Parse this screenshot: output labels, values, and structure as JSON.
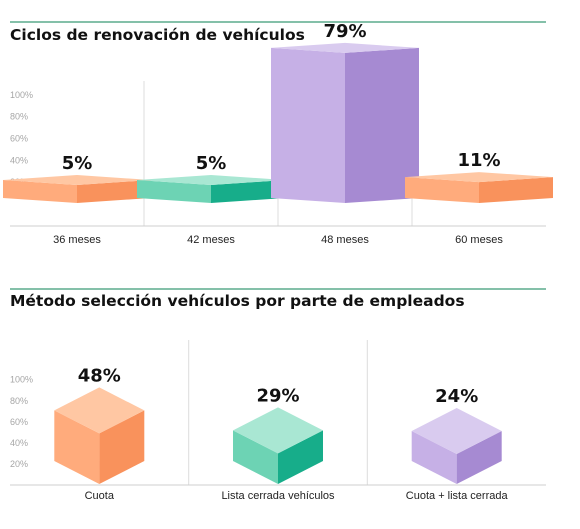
{
  "colors": {
    "header_rule": "#3a9a76",
    "orange": [
      "#ffc7a3",
      "#ffab7c",
      "#f9925c"
    ],
    "teal": [
      "#a9e7d3",
      "#6dd3b4",
      "#17ad8a"
    ],
    "purple": [
      "#d9cbef",
      "#c6b0e6",
      "#a68ad2"
    ]
  },
  "chart_data": [
    {
      "type": "bar",
      "title": "Ciclos de renovación de vehículos",
      "categories": [
        "36 meses",
        "42 meses",
        "48 meses",
        "60 meses"
      ],
      "values": [
        5,
        5,
        79,
        11
      ],
      "value_labels": [
        "5%",
        "5%",
        "79%",
        "11%"
      ],
      "bar_colors": [
        "orange",
        "teal",
        "purple",
        "orange"
      ],
      "y_ticks": [
        "20%",
        "40%",
        "60%",
        "80%",
        "100%"
      ],
      "ylim": [
        0,
        100
      ],
      "grid": false
    },
    {
      "type": "bar",
      "title": "Método selección vehículos por parte de empleados",
      "categories": [
        "Cuota",
        "Lista cerrada vehículos",
        "Cuota + lista cerrada"
      ],
      "values": [
        48,
        29,
        24
      ],
      "value_labels": [
        "48%",
        "29%",
        "24%"
      ],
      "bar_colors": [
        "orange",
        "teal",
        "purple"
      ],
      "y_ticks": [
        "20%",
        "40%",
        "60%",
        "80%",
        "100%"
      ],
      "ylim": [
        0,
        100
      ],
      "grid": false
    }
  ]
}
